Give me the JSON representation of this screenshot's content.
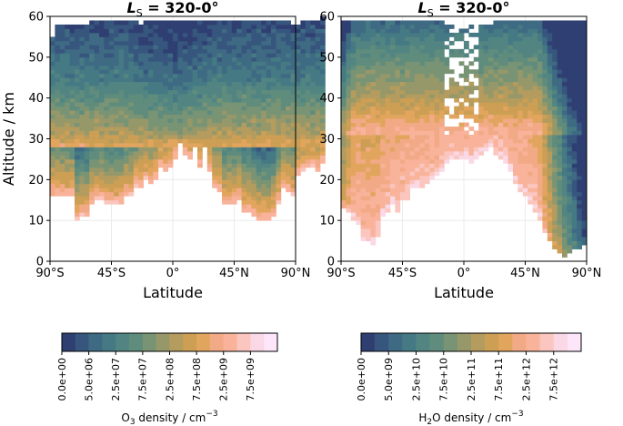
{
  "chart_data": [
    {
      "type": "heatmap",
      "title_symbol": "L",
      "title_subscript": "S",
      "title_value": " = 320-0°",
      "xlabel": "Latitude",
      "ylabel": "Altitude / km",
      "xlim": [
        -90,
        90
      ],
      "ylim": [
        0,
        60
      ],
      "xticks": [
        -90,
        -45,
        0,
        45,
        90
      ],
      "xtick_labels": [
        "90°S",
        "45°S",
        "0°",
        "45°N",
        "90°N"
      ],
      "yticks": [
        0,
        10,
        20,
        30,
        40,
        50,
        60
      ],
      "ytick_labels": [
        "0",
        "10",
        "20",
        "30",
        "40",
        "50",
        "60"
      ],
      "cell_width_deg": 3.6,
      "cell_height_km": 1,
      "surface_bottom_km": [
        16,
        16,
        16,
        16,
        16,
        10,
        11,
        11,
        14,
        15,
        15,
        14,
        14,
        14,
        14,
        16,
        16,
        18,
        18,
        20,
        19,
        20,
        23,
        22,
        23,
        25,
        29,
        26,
        25,
        28,
        23,
        28,
        22,
        18,
        17,
        14,
        14,
        14,
        15,
        12,
        12,
        11,
        10,
        10,
        10,
        11,
        14,
        18,
        17,
        16,
        21,
        22,
        23,
        23,
        22,
        24
      ],
      "data_top_km": [
        55,
        58,
        58,
        58,
        58,
        58,
        58,
        58,
        59,
        59,
        59,
        59,
        59,
        59,
        59,
        59,
        59,
        59,
        58,
        59,
        59,
        59,
        59,
        59,
        59,
        59,
        59,
        59,
        59,
        59,
        59,
        59,
        59,
        59,
        59,
        59,
        59,
        59,
        59,
        59,
        59,
        59,
        59,
        59,
        59,
        59,
        59,
        59,
        59,
        58,
        58,
        59,
        59,
        59,
        59,
        60
      ],
      "color_profile": "o3",
      "colorbar": {
        "label_main": "O",
        "label_sub": "3",
        "label_rest": " density / cm",
        "label_sup": "−3",
        "tick_labels": [
          "0.0e+00",
          "5.0e+06",
          "2.5e+07",
          "7.5e+07",
          "2.5e+08",
          "7.5e+08",
          "2.5e+09",
          "7.5e+09"
        ]
      }
    },
    {
      "type": "heatmap",
      "title_symbol": "L",
      "title_subscript": "S",
      "title_value": " = 320-0°",
      "xlabel": "Latitude",
      "ylabel": "",
      "xlim": [
        -90,
        90
      ],
      "ylim": [
        0,
        60
      ],
      "xticks": [
        -90,
        -45,
        0,
        45,
        90
      ],
      "xtick_labels": [
        "90°S",
        "45°S",
        "0°",
        "45°N",
        "90°N"
      ],
      "yticks": [
        0,
        10,
        20,
        30,
        40,
        50,
        60
      ],
      "ytick_labels": [
        "0",
        "10",
        "20",
        "30",
        "40",
        "50",
        "60"
      ],
      "cell_width_deg": 3.6,
      "cell_height_km": 1,
      "surface_bottom_km": [
        13,
        12,
        10,
        9,
        5,
        5,
        4,
        6,
        11,
        12,
        14,
        12,
        15,
        15,
        18,
        18,
        18,
        19,
        20,
        21,
        22,
        24,
        25,
        25,
        25,
        25,
        24,
        25,
        26,
        27,
        28,
        26,
        25,
        24,
        22,
        19,
        17,
        16,
        14,
        12,
        10,
        7,
        5,
        3,
        2,
        1,
        2,
        3,
        3,
        4
      ],
      "data_top_km": [
        59,
        59,
        59,
        59,
        59,
        59,
        59,
        59,
        59,
        59,
        59,
        59,
        59,
        59,
        59,
        59,
        59,
        59,
        59,
        59,
        59,
        58,
        58,
        56,
        57,
        60,
        60,
        59,
        58,
        58,
        58,
        59,
        59,
        59,
        59,
        59,
        59,
        59,
        59,
        59,
        59,
        59,
        59,
        59,
        59,
        59,
        59,
        59,
        59,
        59
      ],
      "color_profile": "h2o",
      "colorbar": {
        "label_main": "H",
        "label_sub": "2",
        "label_rest": "O density / cm",
        "label_sup": "−3",
        "tick_labels": [
          "0.0e+00",
          "5.0e+09",
          "2.5e+10",
          "7.5e+10",
          "2.5e+11",
          "7.5e+11",
          "2.5e+12",
          "7.5e+12"
        ]
      }
    }
  ],
  "palette": [
    "#2f3f72",
    "#37567e",
    "#3e6a83",
    "#457a84",
    "#528582",
    "#5f8c7c",
    "#789474",
    "#97986a",
    "#b49c5e",
    "#cc9f55",
    "#e2a55e",
    "#f2aa86",
    "#f8b39a",
    "#fbc6bf",
    "#fad8e6",
    "#fde5fa"
  ]
}
